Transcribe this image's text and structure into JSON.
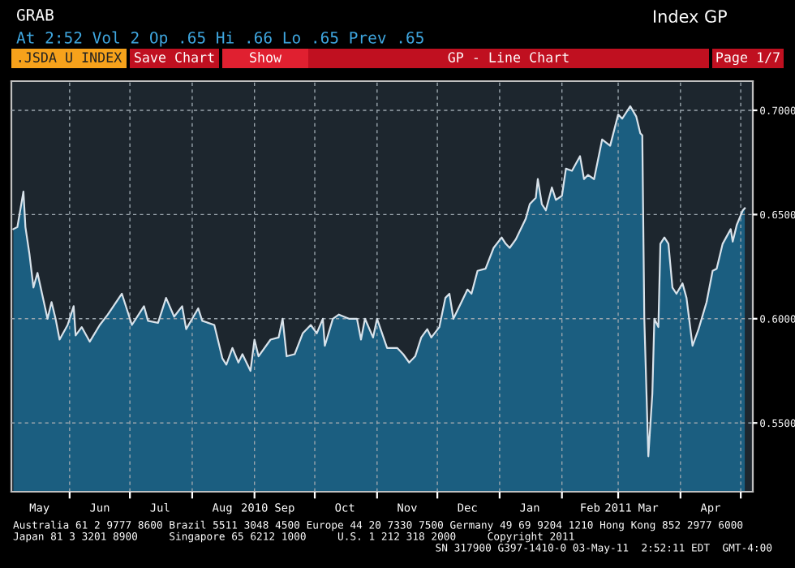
{
  "chart_data": {
    "type": "area",
    "title": "GP - Line Chart",
    "annotations": [
      "GRAB",
      "At 2:52 Vol 2 Op .65 Hi .66 Lo .65 Prev .65",
      "Index GP",
      ".JSDA U INDEX",
      "Save Chart",
      "Show",
      "Page 1/7",
      "Australia 61 2 9777 8600 Brazil 5511 3048 4500 Europe 44 20 7330 7500 Germany 49 69 9204 1210 Hong Kong 852 2977 6000",
      "Japan 81 3 3201 8900     Singapore 65 6212 1000     U.S. 1 212 318 2000     Copyright 2011",
      "SN 317900 G397-1410-0 03-May-11  2:52:11 EDT  GMT-4:00"
    ],
    "xlim": [
      "2010-05-03",
      "2011-05-07"
    ],
    "xticks": [
      {
        "value": "2010-05-17",
        "label": "May"
      },
      {
        "value": "2010-06-01",
        "label": null
      },
      {
        "value": "2010-06-16",
        "label": "Jun"
      },
      {
        "value": "2010-07-01",
        "label": null
      },
      {
        "value": "2010-07-16",
        "label": "Jul"
      },
      {
        "value": "2010-08-01",
        "label": null
      },
      {
        "value": "2010-08-16",
        "label": "Aug"
      },
      {
        "value": "2010-09-01",
        "label": "2010"
      },
      {
        "value": "2010-09-16",
        "label": "Sep"
      },
      {
        "value": "2010-10-01",
        "label": null
      },
      {
        "value": "2010-10-16",
        "label": "Oct"
      },
      {
        "value": "2010-11-01",
        "label": null
      },
      {
        "value": "2010-11-16",
        "label": "Nov"
      },
      {
        "value": "2010-12-01",
        "label": null
      },
      {
        "value": "2010-12-16",
        "label": "Dec"
      },
      {
        "value": "2011-01-01",
        "label": null
      },
      {
        "value": "2011-01-16",
        "label": "Jan"
      },
      {
        "value": "2011-02-01",
        "label": null
      },
      {
        "value": "2011-02-15",
        "label": "Feb"
      },
      {
        "value": "2011-03-01",
        "label": "2011"
      },
      {
        "value": "2011-03-16",
        "label": "Mar"
      },
      {
        "value": "2011-04-01",
        "label": null
      },
      {
        "value": "2011-04-16",
        "label": "Apr"
      },
      {
        "value": "2011-05-01",
        "label": null
      }
    ],
    "ylim": [
      0.517,
      0.714
    ],
    "yticks": [
      {
        "value": 0.55,
        "label": "0.5500"
      },
      {
        "value": 0.6,
        "label": "0.6000"
      },
      {
        "value": 0.65,
        "label": "0.6500"
      },
      {
        "value": 0.7,
        "label": "0.7000"
      }
    ],
    "grid": true,
    "series": [
      {
        "color": "#1b5e80",
        "x": [
          "2010-05-04",
          "2010-05-06",
          "2010-05-09",
          "2010-05-10",
          "2010-05-12",
          "2010-05-14",
          "2010-05-16",
          "2010-05-21",
          "2010-05-23",
          "2010-05-25",
          "2010-05-27",
          "2010-05-31",
          "2010-06-03",
          "2010-06-04",
          "2010-06-07",
          "2010-06-11",
          "2010-06-16",
          "2010-06-20",
          "2010-06-27",
          "2010-07-02",
          "2010-07-08",
          "2010-07-10",
          "2010-07-15",
          "2010-07-19",
          "2010-07-23",
          "2010-07-27",
          "2010-07-29",
          "2010-08-04",
          "2010-08-06",
          "2010-08-12",
          "2010-08-16",
          "2010-08-18",
          "2010-08-21",
          "2010-08-24",
          "2010-08-26",
          "2010-08-30",
          "2010-09-01",
          "2010-09-03",
          "2010-09-09",
          "2010-09-13",
          "2010-09-15",
          "2010-09-17",
          "2010-09-21",
          "2010-09-25",
          "2010-09-29",
          "2010-10-02",
          "2010-10-05",
          "2010-10-06",
          "2010-10-10",
          "2010-10-13",
          "2010-10-18",
          "2010-10-22",
          "2010-10-24",
          "2010-10-26",
          "2010-10-30",
          "2010-11-01",
          "2010-11-06",
          "2010-11-08",
          "2010-11-11",
          "2010-11-14",
          "2010-11-17",
          "2010-11-20",
          "2010-11-23",
          "2010-11-26",
          "2010-11-28",
          "2010-12-02",
          "2010-12-05",
          "2010-12-07",
          "2010-12-09",
          "2010-12-13",
          "2010-12-16",
          "2010-12-18",
          "2010-12-21",
          "2010-12-25",
          "2010-12-29",
          "2011-01-02",
          "2011-01-04",
          "2011-01-06",
          "2011-01-09",
          "2011-01-14",
          "2011-01-16",
          "2011-01-19",
          "2011-01-20",
          "2011-01-22",
          "2011-01-24",
          "2011-01-27",
          "2011-01-29",
          "2011-02-01",
          "2011-02-03",
          "2011-02-06",
          "2011-02-10",
          "2011-02-12",
          "2011-02-14",
          "2011-02-17",
          "2011-02-21",
          "2011-02-25",
          "2011-03-01",
          "2011-03-03",
          "2011-03-07",
          "2011-03-10",
          "2011-03-12",
          "2011-03-13",
          "2011-03-14",
          "2011-03-16",
          "2011-03-18",
          "2011-03-19",
          "2011-03-21",
          "2011-03-22",
          "2011-03-24",
          "2011-03-26",
          "2011-03-28",
          "2011-03-30",
          "2011-04-02",
          "2011-04-04",
          "2011-04-07",
          "2011-04-10",
          "2011-04-14",
          "2011-04-17",
          "2011-04-19",
          "2011-04-22",
          "2011-04-26",
          "2011-04-27",
          "2011-04-29",
          "2011-05-02",
          "2011-05-03"
        ],
        "values": [
          0.643,
          0.644,
          0.661,
          0.644,
          0.631,
          0.615,
          0.622,
          0.6,
          0.608,
          0.6,
          0.59,
          0.597,
          0.606,
          0.592,
          0.596,
          0.589,
          0.597,
          0.602,
          0.612,
          0.597,
          0.606,
          0.599,
          0.598,
          0.61,
          0.601,
          0.606,
          0.595,
          0.605,
          0.599,
          0.597,
          0.581,
          0.578,
          0.586,
          0.579,
          0.583,
          0.575,
          0.59,
          0.582,
          0.59,
          0.591,
          0.6,
          0.582,
          0.583,
          0.593,
          0.597,
          0.593,
          0.6,
          0.587,
          0.6,
          0.602,
          0.6,
          0.6,
          0.59,
          0.6,
          0.591,
          0.6,
          0.586,
          0.586,
          0.586,
          0.583,
          0.579,
          0.582,
          0.591,
          0.595,
          0.591,
          0.596,
          0.61,
          0.612,
          0.6,
          0.608,
          0.614,
          0.612,
          0.623,
          0.624,
          0.634,
          0.639,
          0.636,
          0.634,
          0.638,
          0.648,
          0.655,
          0.658,
          0.667,
          0.655,
          0.652,
          0.663,
          0.657,
          0.659,
          0.672,
          0.671,
          0.678,
          0.667,
          0.669,
          0.667,
          0.686,
          0.683,
          0.698,
          0.696,
          0.702,
          0.697,
          0.689,
          0.688,
          0.6,
          0.534,
          0.564,
          0.6,
          0.596,
          0.636,
          0.639,
          0.636,
          0.615,
          0.612,
          0.617,
          0.61,
          0.587,
          0.595,
          0.608,
          0.623,
          0.624,
          0.636,
          0.643,
          0.637,
          0.645,
          0.652,
          0.653
        ]
      }
    ]
  }
}
